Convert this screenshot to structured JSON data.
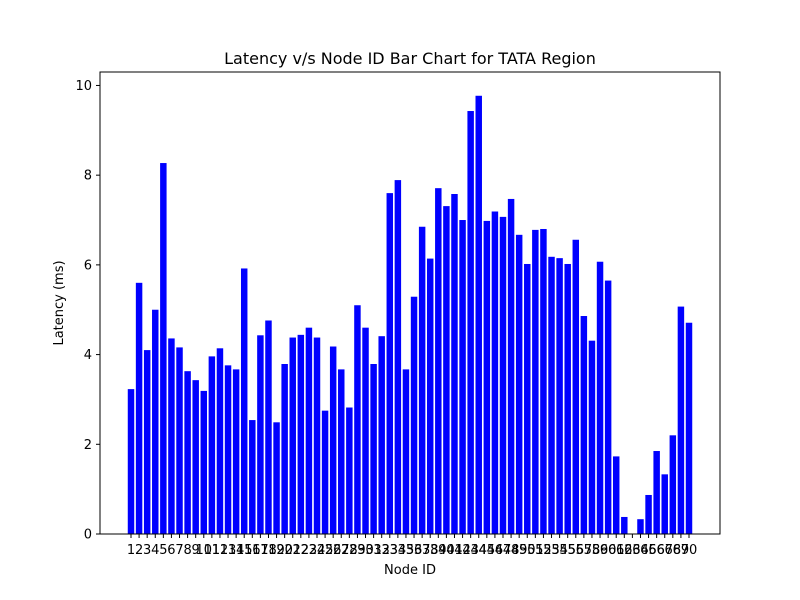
{
  "chart_data": {
    "type": "bar",
    "title": "Latency v/s Node ID Bar Chart for TATA Region",
    "xlabel": "Node ID",
    "ylabel": "Latency (ms)",
    "ylim": [
      0,
      10.3
    ],
    "yticks": [
      0,
      2,
      4,
      6,
      8,
      10
    ],
    "grid": false,
    "legend": "none",
    "bar_color": "#0000ff",
    "categories": [
      "1",
      "2",
      "3",
      "4",
      "5",
      "6",
      "7",
      "8",
      "9",
      "10",
      "11",
      "12",
      "13",
      "14",
      "15",
      "16",
      "17",
      "18",
      "19",
      "20",
      "21",
      "22",
      "23",
      "24",
      "25",
      "26",
      "27",
      "28",
      "29",
      "30",
      "31",
      "32",
      "33",
      "34",
      "35",
      "36",
      "37",
      "38",
      "39",
      "40",
      "41",
      "42",
      "43",
      "44",
      "45",
      "46",
      "47",
      "48",
      "49",
      "50",
      "51",
      "52",
      "53",
      "54",
      "55",
      "56",
      "57",
      "58",
      "59",
      "60",
      "61",
      "62",
      "63",
      "64",
      "65",
      "66",
      "67",
      "68",
      "69",
      "70"
    ],
    "values": [
      3.23,
      5.6,
      4.1,
      5.0,
      8.27,
      4.36,
      4.16,
      3.63,
      3.43,
      3.19,
      3.96,
      4.14,
      3.76,
      3.67,
      5.92,
      2.54,
      4.43,
      4.76,
      2.49,
      3.79,
      4.38,
      4.44,
      4.6,
      4.38,
      2.75,
      4.18,
      3.67,
      2.82,
      5.1,
      4.6,
      3.79,
      4.41,
      7.6,
      7.89,
      3.67,
      5.29,
      6.85,
      6.14,
      7.71,
      7.31,
      7.58,
      7.0,
      9.43,
      9.77,
      6.98,
      7.19,
      7.07,
      7.47,
      6.67,
      6.02,
      6.78,
      6.8,
      6.18,
      6.15,
      6.02,
      6.56,
      4.86,
      4.31,
      6.07,
      5.65,
      1.73,
      0.38,
      0.0,
      0.33,
      0.87,
      1.85,
      1.33,
      2.2,
      5.07,
      4.71
    ]
  }
}
